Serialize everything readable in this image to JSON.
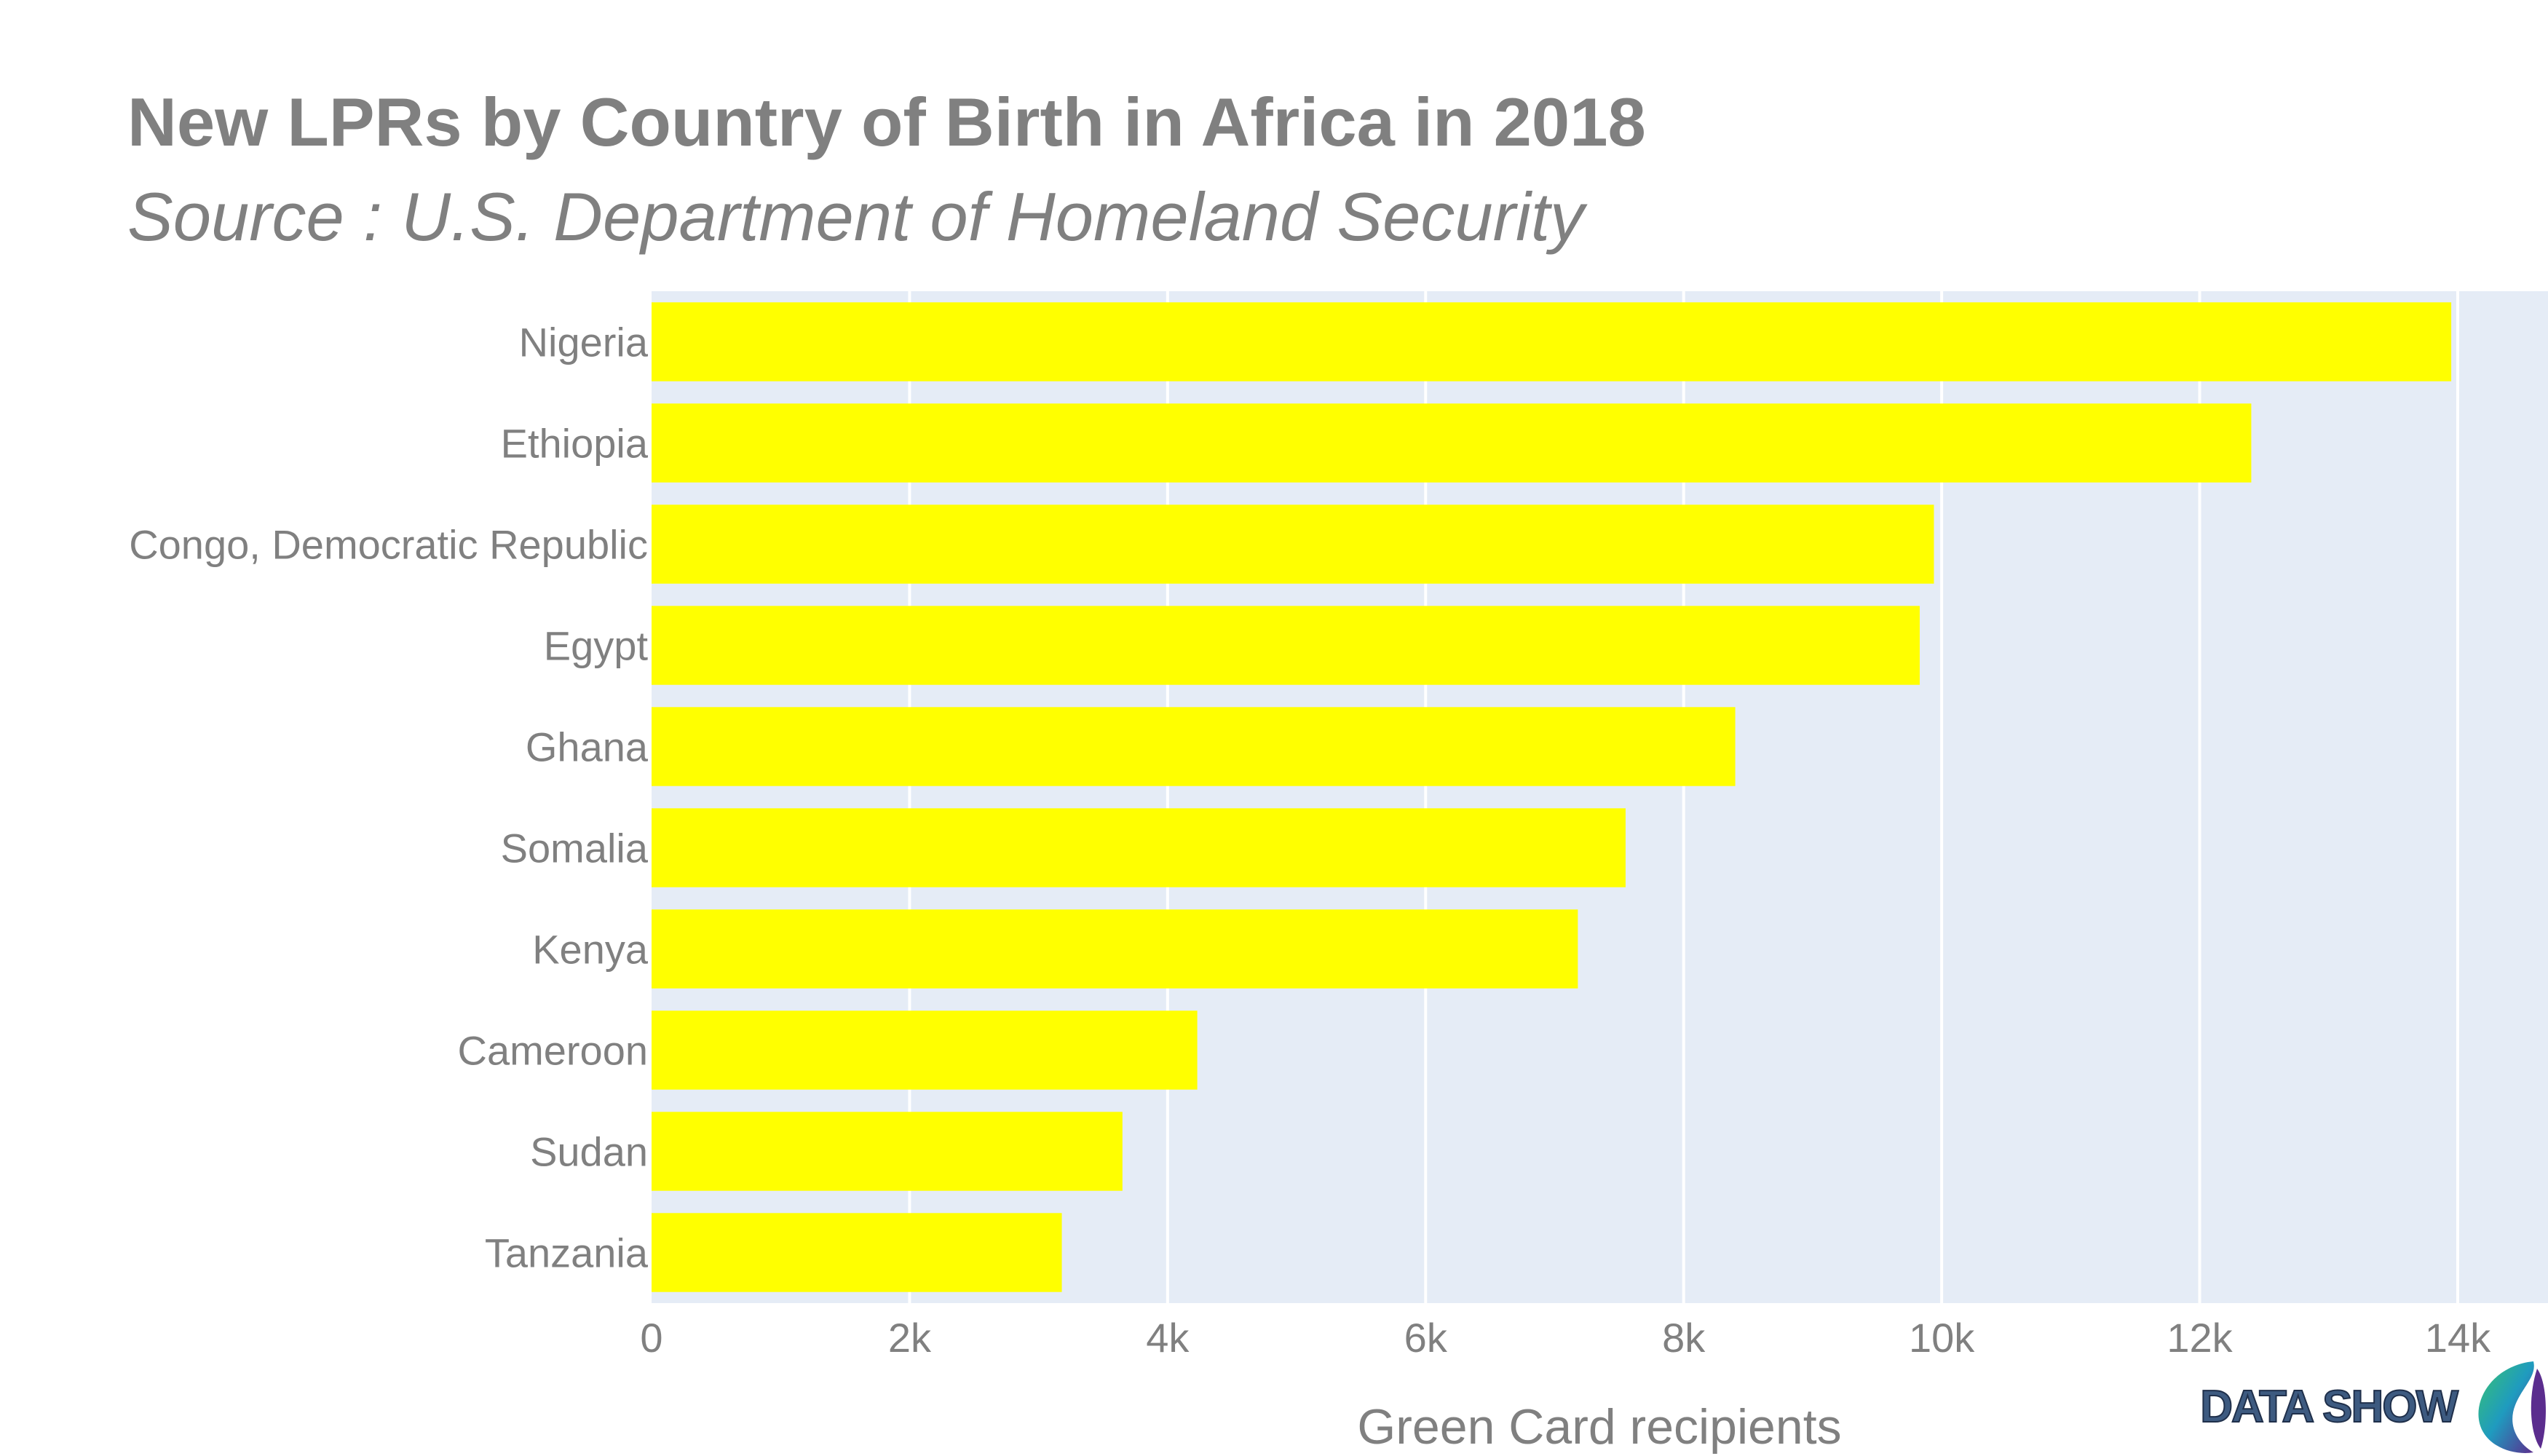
{
  "chart_data": {
    "type": "bar",
    "orientation": "horizontal",
    "title": "New LPRs by Country of Birth in Africa in 2018",
    "subtitle": "Source : U.S. Department of Homeland Security",
    "xlabel": "Green Card recipients",
    "ylabel": "",
    "categories": [
      "Nigeria",
      "Ethiopia",
      "Congo, Democratic Republic",
      "Egypt",
      "Ghana",
      "Somalia",
      "Kenya",
      "Cameroon",
      "Sudan",
      "Tanzania"
    ],
    "values": [
      13950,
      12400,
      9940,
      9830,
      8400,
      7550,
      7180,
      4230,
      3650,
      3180
    ],
    "xlim": [
      0,
      14700
    ],
    "xticks": [
      0,
      2000,
      4000,
      6000,
      8000,
      10000,
      12000,
      14000
    ],
    "xtick_labels": [
      "0",
      "2k",
      "4k",
      "6k",
      "8k",
      "10k",
      "12k",
      "14k"
    ],
    "grid": true,
    "legend": "none",
    "bar_color": "#ffff00",
    "plot_background": "#e5ecf6",
    "text_color": "#808080"
  },
  "logo": {
    "text": "DATA SHOW"
  }
}
